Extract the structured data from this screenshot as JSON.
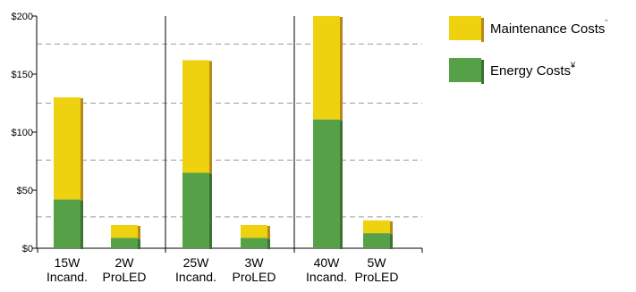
{
  "chart_data": {
    "type": "bar",
    "stacked": true,
    "categories": [
      [
        "15W",
        "Incand."
      ],
      [
        "2W",
        "ProLED"
      ],
      [
        "25W",
        "Incand."
      ],
      [
        "3W",
        "ProLED"
      ],
      [
        "40W",
        "Incand."
      ],
      [
        "5W",
        "ProLED"
      ]
    ],
    "series": [
      {
        "name": "Energy Costs",
        "marker": "¥",
        "color": "#56a147",
        "shadow": "#3c7232",
        "values": [
          42,
          9,
          65,
          9,
          111,
          13
        ]
      },
      {
        "name": "Maintenance Costs",
        "marker": "ˇ",
        "color": "#efd20f",
        "shadow": "#b8881b",
        "values": [
          88,
          11,
          97,
          11,
          89,
          11
        ]
      }
    ],
    "ylim": [
      0,
      200
    ],
    "yticks": [
      0,
      50,
      100,
      150,
      200
    ],
    "ytick_labels": [
      "$0",
      "$50",
      "$100",
      "$150",
      "$200"
    ],
    "gridlines": [
      27,
      76,
      125,
      176
    ],
    "grid": "dashed",
    "group_separators": [
      2,
      4
    ],
    "legend_position": "top-right",
    "xlabel": "",
    "ylabel": "",
    "title": ""
  }
}
